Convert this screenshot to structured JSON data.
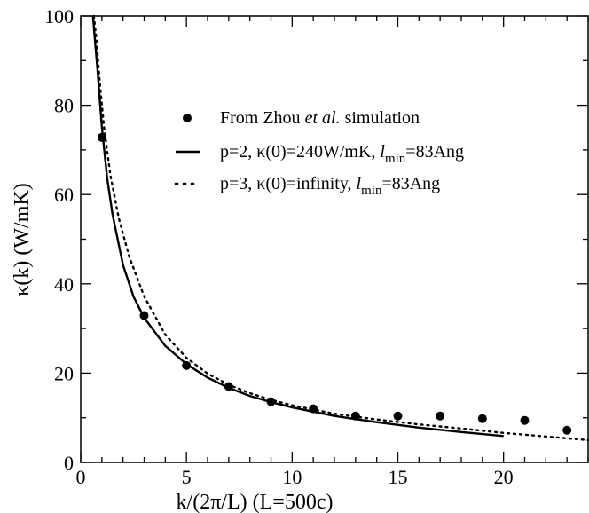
{
  "chart_data": {
    "type": "scatter",
    "xlabel": "k/(2π/L) (L=500c)",
    "ylabel": "κ(k) (W/mK)",
    "xlim": [
      0,
      24
    ],
    "ylim": [
      0,
      100
    ],
    "xticks": [
      "0",
      "5",
      "10",
      "15",
      "20"
    ],
    "yticks": [
      "0",
      "20",
      "40",
      "60",
      "80",
      "100"
    ],
    "grid": false,
    "legend_position": "top-right",
    "legend": [
      {
        "marker": "dot",
        "parts": [
          {
            "t": "From Zhou "
          },
          {
            "t": "et al.",
            "style": "italic"
          },
          {
            "t": " simulation"
          }
        ]
      },
      {
        "marker": "solid-line",
        "parts": [
          {
            "t": "p=2, κ(0)=240W/mK, "
          },
          {
            "t": "l",
            "style": "italic"
          },
          {
            "t": "min",
            "style": "sub"
          },
          {
            "t": "=83Ang"
          }
        ]
      },
      {
        "marker": "dotted-line",
        "parts": [
          {
            "t": "p=3, κ(0)=infinity, "
          },
          {
            "t": "l",
            "style": "italic"
          },
          {
            "t": "min",
            "style": "sub"
          },
          {
            "t": "=83Ang"
          }
        ]
      }
    ],
    "series": [
      {
        "kind": "points",
        "color": "#000000",
        "x": [
          1,
          3,
          5,
          7,
          9,
          11,
          13,
          15,
          17,
          19,
          21,
          23
        ],
        "y": [
          72.8,
          32.9,
          21.7,
          17.0,
          13.6,
          12.0,
          10.4,
          10.4,
          10.4,
          9.8,
          9.4,
          7.2
        ]
      },
      {
        "kind": "line",
        "style": "solid",
        "color": "#000000",
        "x": [
          0.58,
          0.7,
          0.8,
          1.0,
          1.25,
          1.5,
          2,
          2.5,
          3,
          4,
          5,
          6,
          7,
          8,
          9,
          10,
          12,
          14,
          16,
          18,
          20
        ],
        "y": [
          100,
          93,
          87.5,
          75.2,
          63.7,
          55.6,
          44.2,
          37.1,
          32.4,
          26.1,
          22.0,
          19.0,
          16.7,
          14.9,
          13.5,
          12.3,
          10.4,
          9.0,
          7.8,
          6.8,
          5.9
        ]
      },
      {
        "kind": "line",
        "style": "dotted",
        "color": "#000000",
        "x": [
          0.62,
          0.75,
          0.9,
          1.1,
          1.4,
          1.8,
          2.3,
          3,
          4,
          5,
          6,
          7,
          8,
          9,
          10,
          12,
          14,
          16,
          18,
          20,
          22,
          24
        ],
        "y": [
          100,
          94.5,
          85.0,
          75.2,
          64.4,
          54.7,
          46.0,
          37.2,
          28.6,
          23.4,
          19.9,
          17.4,
          15.5,
          14.0,
          12.8,
          10.9,
          9.6,
          8.5,
          7.6,
          6.6,
          5.8,
          5.0
        ]
      }
    ]
  }
}
